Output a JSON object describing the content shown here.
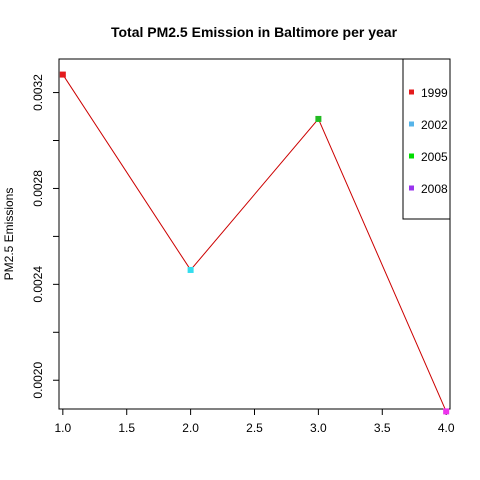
{
  "chart_data": {
    "type": "line",
    "title": "Total PM2.5 Emission in Baltimore per year",
    "xlabel": "",
    "ylabel": "PM2.5 Emissions",
    "xlim": [
      0.97,
      4.03
    ],
    "ylim": [
      0.00188,
      0.00334
    ],
    "x_ticks": [
      1.0,
      1.5,
      2.0,
      2.5,
      3.0,
      3.5,
      4.0
    ],
    "x_tick_labels": [
      "1.0",
      "1.5",
      "2.0",
      "2.5",
      "3.0",
      "3.5",
      "4.0"
    ],
    "y_ticks": [
      0.002,
      0.0024,
      0.0028,
      0.0032
    ],
    "y_tick_labels": [
      "0.0020",
      "0.0024",
      "0.0028",
      "0.0032"
    ],
    "grid": false,
    "line_color": "#CC0000",
    "points": [
      {
        "x": 1,
        "y": 0.003275,
        "color": "#E41A1C"
      },
      {
        "x": 2,
        "y": 0.00246,
        "color": "#33DDEE"
      },
      {
        "x": 3,
        "y": 0.00309,
        "color": "#22BB22"
      },
      {
        "x": 4,
        "y": 0.00187,
        "color": "#EE33EE"
      }
    ],
    "legend": {
      "placement": "top-right",
      "items": [
        {
          "label": "1999",
          "color": "#E41A1C"
        },
        {
          "label": "2002",
          "color": "#56B4E9"
        },
        {
          "label": "2005",
          "color": "#00DD00"
        },
        {
          "label": "2008",
          "color": "#9933EE"
        }
      ]
    }
  }
}
